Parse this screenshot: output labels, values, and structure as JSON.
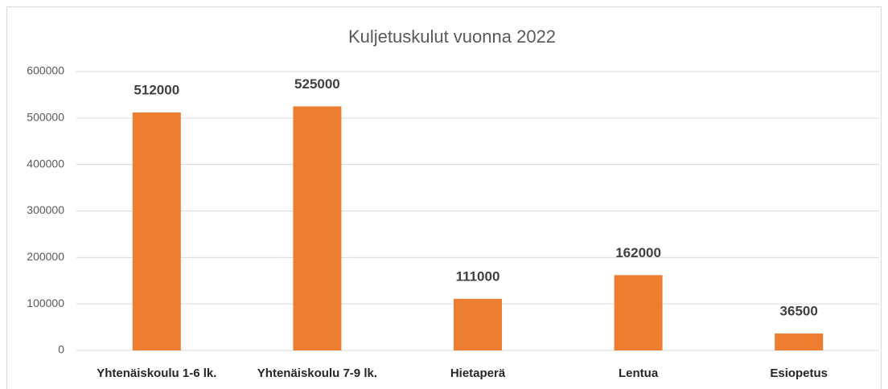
{
  "chart_data": {
    "type": "bar",
    "title": "Kuljetuskulut vuonna 2022",
    "categories": [
      "Yhtenäiskoulu 1-6 lk.",
      "Yhtenäiskoulu 7-9 lk.",
      "Hietaperä",
      "Lentua",
      "Esiopetus"
    ],
    "values": [
      512000,
      525000,
      111000,
      162000,
      36500
    ],
    "color": "#ed7d31",
    "ylim": [
      0,
      600000
    ],
    "yticks": [
      0,
      100000,
      200000,
      300000,
      400000,
      500000,
      600000
    ],
    "grid": true
  }
}
